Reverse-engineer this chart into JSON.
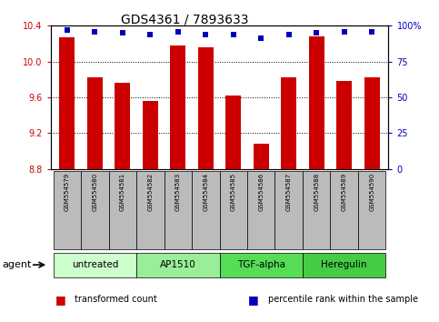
{
  "title": "GDS4361 / 7893633",
  "samples": [
    "GSM554579",
    "GSM554580",
    "GSM554581",
    "GSM554582",
    "GSM554583",
    "GSM554584",
    "GSM554585",
    "GSM554586",
    "GSM554587",
    "GSM554588",
    "GSM554589",
    "GSM554590"
  ],
  "bar_values": [
    10.27,
    9.82,
    9.76,
    9.56,
    10.18,
    10.16,
    9.62,
    9.08,
    9.82,
    10.28,
    9.78,
    9.82
  ],
  "percentile_values": [
    97,
    96,
    95,
    94,
    96,
    94,
    94,
    91,
    94,
    95,
    96,
    96
  ],
  "bar_bottom": 8.8,
  "ylim_left": [
    8.8,
    10.4
  ],
  "ylim_right": [
    0,
    100
  ],
  "yticks_left": [
    8.8,
    9.2,
    9.6,
    10.0,
    10.4
  ],
  "yticks_right": [
    0,
    25,
    50,
    75,
    100
  ],
  "bar_color": "#cc0000",
  "dot_color": "#0000bb",
  "agent_groups": [
    {
      "label": "untreated",
      "start": 0,
      "end": 3,
      "color": "#ccffcc"
    },
    {
      "label": "AP1510",
      "start": 3,
      "end": 6,
      "color": "#99ee99"
    },
    {
      "label": "TGF-alpha",
      "start": 6,
      "end": 9,
      "color": "#55dd55"
    },
    {
      "label": "Heregulin",
      "start": 9,
      "end": 12,
      "color": "#44cc44"
    }
  ],
  "legend_items": [
    {
      "label": "transformed count",
      "color": "#cc0000"
    },
    {
      "label": "percentile rank within the sample",
      "color": "#0000bb"
    }
  ],
  "xlabel_agent": "agent",
  "sample_bg_color": "#bbbbbb",
  "bar_width": 0.55,
  "title_fontsize": 10,
  "tick_fontsize": 7,
  "sample_fontsize": 5,
  "agent_fontsize": 7.5,
  "legend_fontsize": 7
}
